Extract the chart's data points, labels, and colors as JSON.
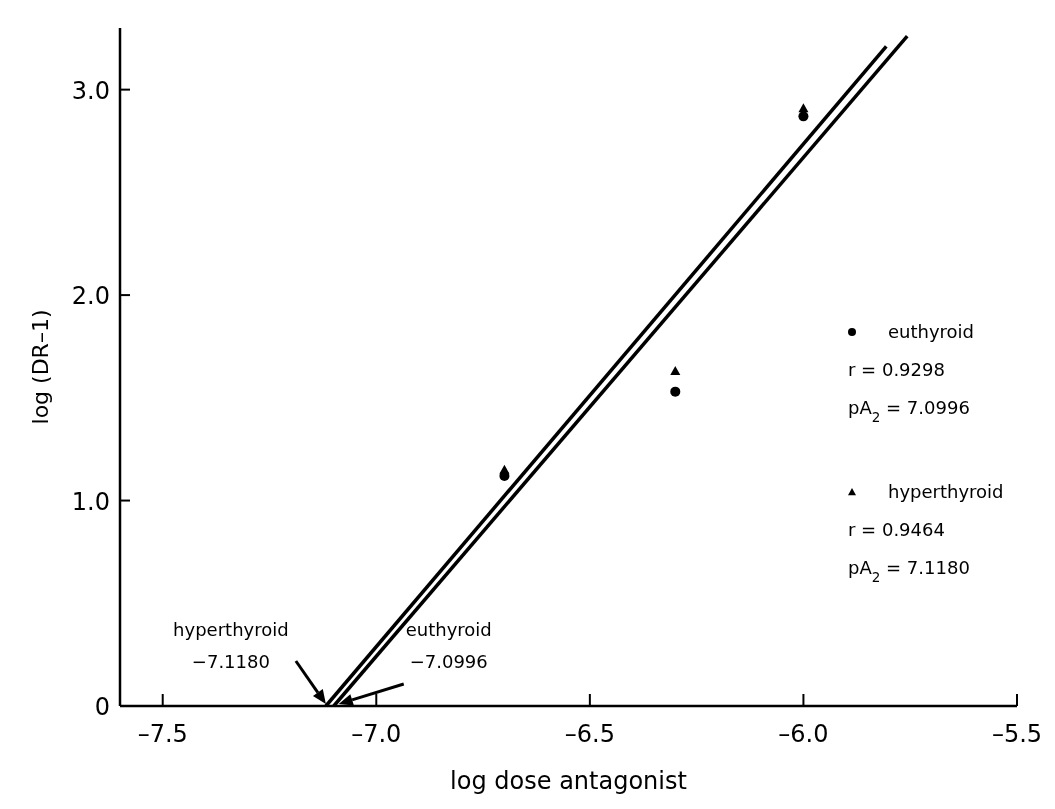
{
  "chart_data": {
    "type": "scatter",
    "xlabel": "log dose antagonist",
    "ylabel": "log (DR–1)",
    "xlim": [
      -7.6,
      -5.5
    ],
    "xticks": [
      {
        "value": -7.5,
        "label": "–7.5"
      },
      {
        "value": -7.0,
        "label": "–7.0"
      },
      {
        "value": -6.5,
        "label": "–6.5"
      },
      {
        "value": -6.0,
        "label": "–6.0"
      },
      {
        "value": -5.5,
        "label": "–5.5"
      }
    ],
    "ylim": [
      0,
      3.3
    ],
    "yticks": [
      {
        "value": 0,
        "label": "0"
      },
      {
        "value": 1,
        "label": "1.0"
      },
      {
        "value": 2,
        "label": "2.0"
      },
      {
        "value": 3,
        "label": "3.0"
      }
    ],
    "grid": false,
    "legend": "right",
    "series": [
      {
        "name": "euthyroid",
        "marker": "circle",
        "color": "#000000",
        "x": [
          -6.7,
          -6.3,
          -6.0
        ],
        "values": [
          1.12,
          1.53,
          2.87
        ]
      },
      {
        "name": "hyperthyroid",
        "marker": "triangle",
        "color": "#000000",
        "x": [
          -6.7,
          -6.3,
          -6.0
        ],
        "values": [
          1.15,
          1.63,
          2.91
        ]
      },
      {
        "type": "line",
        "color": "#000000",
        "x": [
          -7.118,
          -5.806
        ],
        "values": [
          0,
          3.21
        ]
      },
      {
        "type": "line",
        "color": "#000000",
        "x": [
          -7.0996,
          -5.757
        ],
        "values": [
          0,
          3.26
        ]
      }
    ],
    "annotations": [
      "r = 0.9298",
      "pA$_{2}$ = 7.0996",
      "r = 0.9464",
      "pA$_{2}$ = 7.1180",
      "hyperthyroid\n−7.1180",
      "euthyroid\n−7.0996"
    ]
  }
}
